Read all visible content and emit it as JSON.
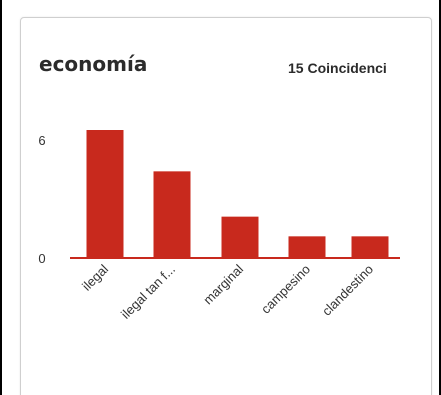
{
  "card": {
    "title": "economía",
    "matches": "15 Coincidenci"
  },
  "chart_data": {
    "type": "bar",
    "categories": [
      "ilegal",
      "ilegal tan f...",
      "marginal",
      "campesino",
      "clandestino"
    ],
    "values": [
      6.5,
      4.4,
      2.1,
      1.1,
      1.1
    ],
    "yticks": [
      "0",
      "6"
    ],
    "ylim": [
      0,
      6.5
    ],
    "title": "",
    "xlabel": "",
    "ylabel": "",
    "bar_color": "#c8291d",
    "axis_color": "#c8291d"
  }
}
